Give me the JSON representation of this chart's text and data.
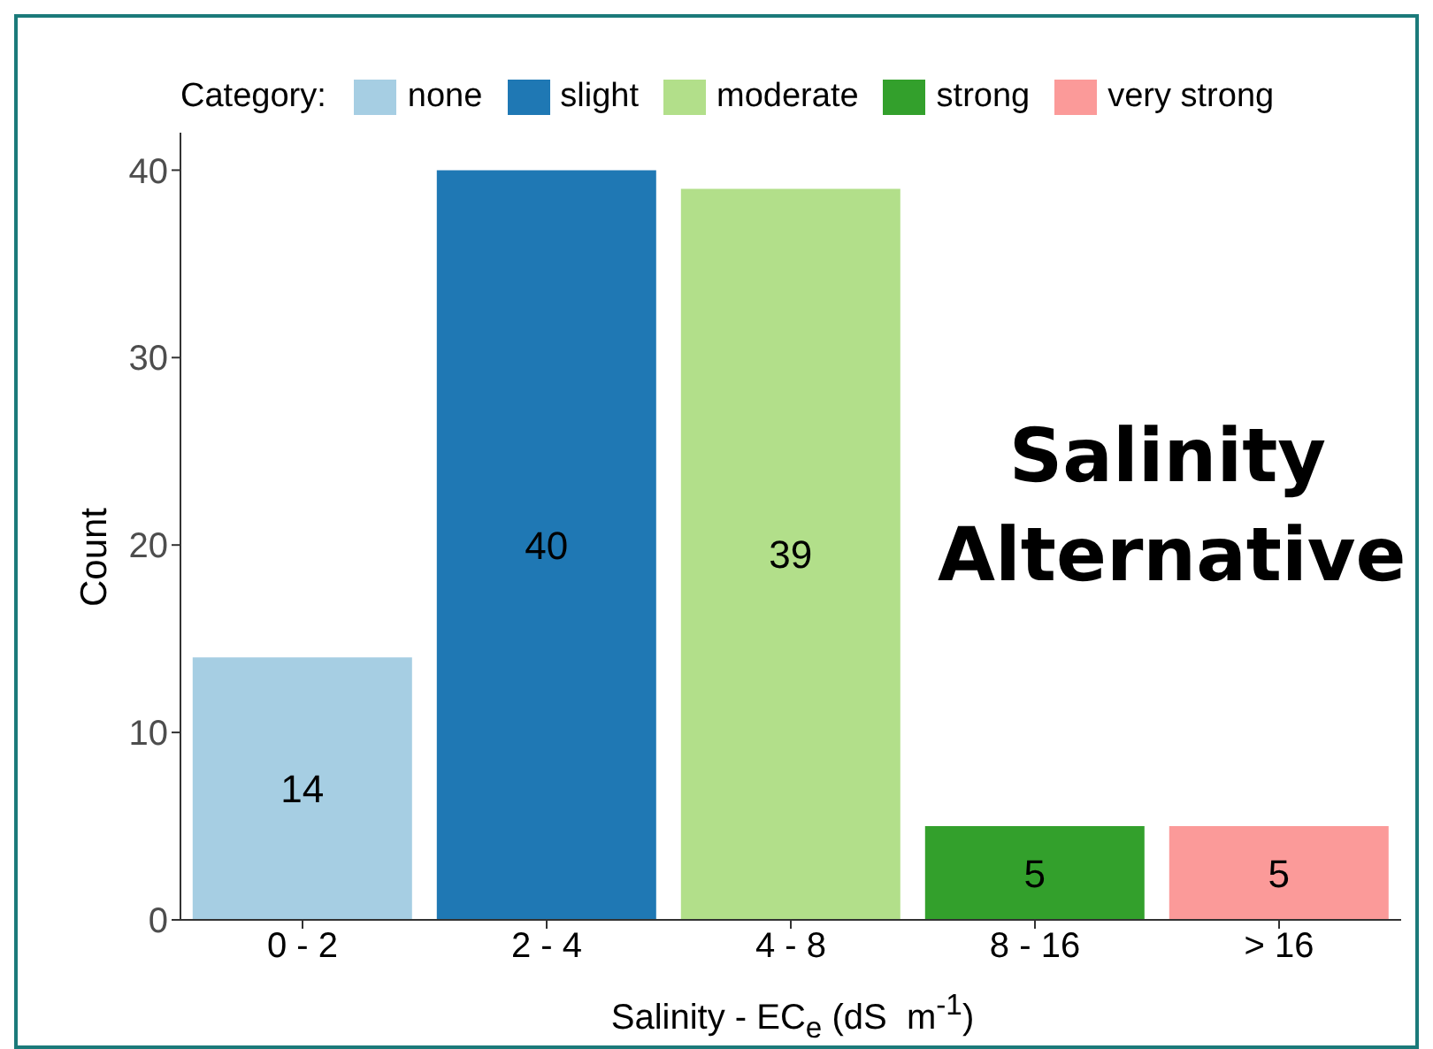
{
  "chart_data": {
    "type": "bar",
    "xlabel": "Salinity - EC$_{e}$ (dS  m$^{-1}$)",
    "ylabel": "Count",
    "legend_title": "Category:",
    "legend": "top",
    "stacked": true,
    "data_labels": true,
    "categories": [
      "0 - 2",
      "2 - 4",
      "4 - 8",
      "8 - 16",
      "> 16"
    ],
    "series": [
      {
        "name": "none",
        "color": "#a6cee3",
        "values": [
          14,
          null,
          null,
          null,
          null
        ]
      },
      {
        "name": "slight",
        "color": "#1f78b4",
        "values": [
          null,
          40,
          null,
          null,
          null
        ]
      },
      {
        "name": "moderate",
        "color": "#b2df8a",
        "values": [
          null,
          null,
          39,
          null,
          null
        ]
      },
      {
        "name": "strong",
        "color": "#33a02c",
        "values": [
          null,
          null,
          null,
          5,
          null
        ]
      },
      {
        "name": "very strong",
        "color": "#fb9a99",
        "values": [
          null,
          null,
          null,
          null,
          5
        ]
      }
    ],
    "ylim": [
      0,
      42
    ],
    "yticks": [
      0,
      10,
      20,
      30,
      40
    ],
    "annotations": [
      "Salinity Alternative"
    ]
  }
}
